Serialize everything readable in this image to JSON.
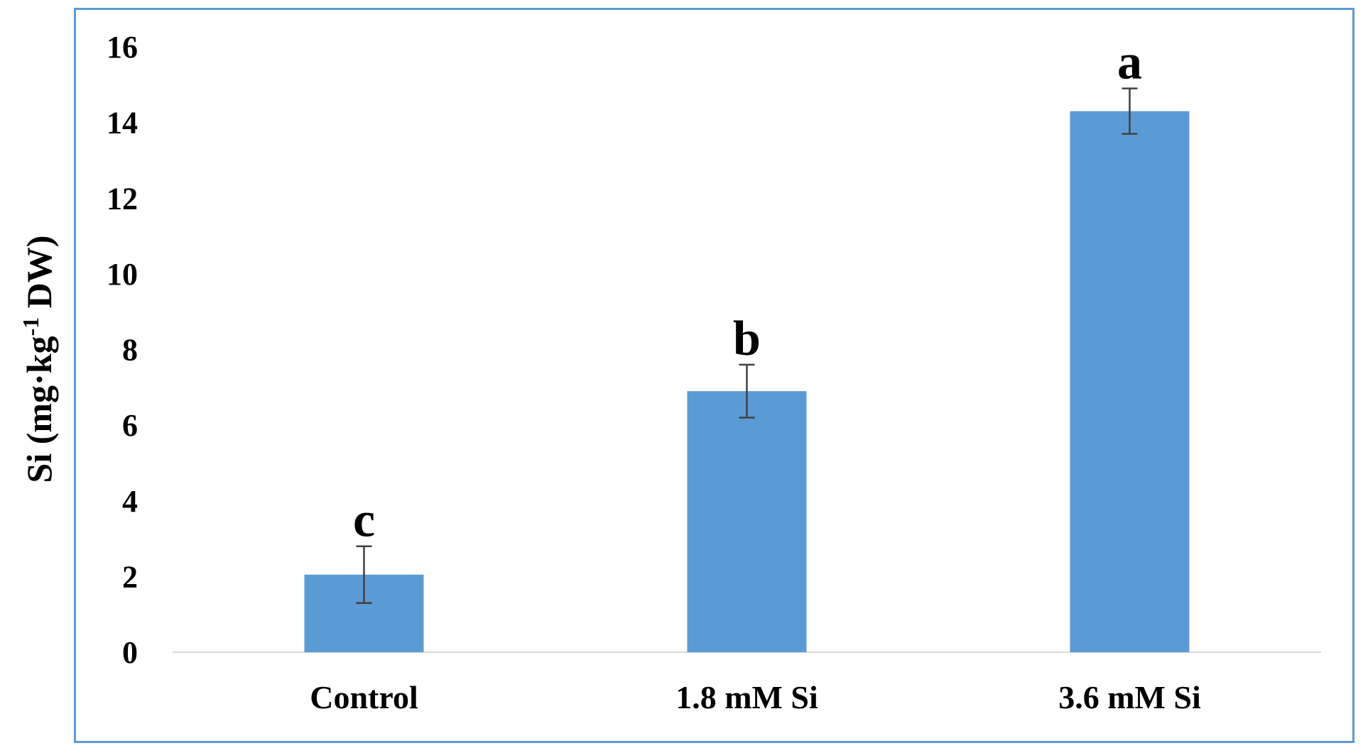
{
  "chart_data": {
    "type": "bar",
    "title": "",
    "xlabel": "",
    "ylabel": {
      "prefix": "Si (mg·kg",
      "superscript": "-1",
      "suffix": " DW)"
    },
    "categories": [
      "Control",
      "1.8 mM Si",
      "3.6 mM Si"
    ],
    "values": [
      2.05,
      6.9,
      14.3
    ],
    "errors": [
      0.75,
      0.7,
      0.6
    ],
    "significance": [
      "c",
      "b",
      "a"
    ],
    "ylim": [
      0,
      16
    ],
    "yticks": [
      "0",
      "2",
      "4",
      "6",
      "8",
      "10",
      "12",
      "14",
      "16"
    ],
    "grid": false,
    "legend": "none",
    "bar_color": "#5b9bd5",
    "error_color": "#404040",
    "axis_color": "#d9d9d9",
    "frame_color": "#5b9bd5"
  }
}
